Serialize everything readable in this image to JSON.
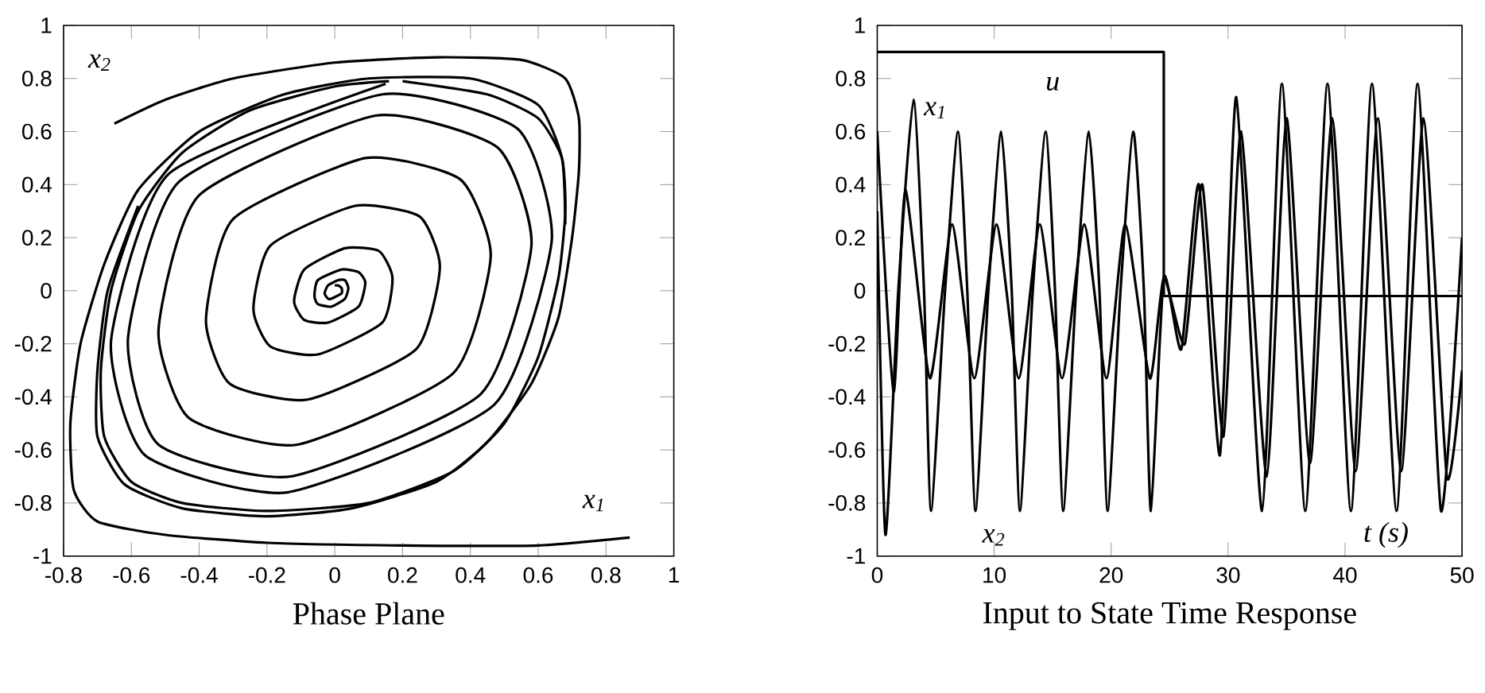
{
  "chart_data": [
    {
      "type": "line",
      "title": "Phase Plane",
      "xlabel": "x$_{1}$",
      "ylabel": "x$_{2}$",
      "xlim": [
        -0.8,
        1
      ],
      "ylim": [
        -1,
        1
      ],
      "xticks": [
        -0.8,
        -0.6,
        -0.4,
        -0.2,
        0,
        0.2,
        0.4,
        0.6,
        0.8,
        1
      ],
      "yticks": [
        -1,
        -0.8,
        -0.6,
        -0.4,
        -0.2,
        0,
        0.2,
        0.4,
        0.6,
        0.8,
        1
      ],
      "series": [
        {
          "color": "#000000",
          "x": [
            0.2,
            0.45,
            0.6,
            0.67,
            0.68,
            0.66,
            0.6,
            0.5,
            0.35,
            0.1,
            -0.2,
            -0.45,
            -0.6,
            -0.68,
            -0.69,
            -0.66,
            -0.58,
            -0.45,
            -0.25,
            0,
            0.16
          ],
          "values": [
            0.79,
            0.74,
            0.65,
            0.5,
            0.3,
            0.05,
            -0.25,
            -0.5,
            -0.68,
            -0.8,
            -0.83,
            -0.8,
            -0.72,
            -0.55,
            -0.3,
            0,
            0.3,
            0.52,
            0.68,
            0.77,
            0.79
          ]
        },
        {
          "color": "#000000",
          "x": [
            0.0,
            0.01,
            0.02,
            0.02,
            -0.01,
            -0.02,
            -0.03,
            -0.02,
            0.01,
            0.03,
            0.04,
            0.03,
            -0.01,
            -0.05,
            -0.06,
            -0.05,
            0.02,
            0.07,
            0.09,
            0.07,
            -0.02,
            -0.09,
            -0.12,
            -0.09,
            0.03,
            0.13,
            0.17,
            0.14,
            -0.05,
            -0.19,
            -0.24,
            -0.19,
            0.06,
            0.25,
            0.31,
            0.24,
            -0.08,
            -0.31,
            -0.38,
            -0.3,
            0.09,
            0.37,
            0.46,
            0.35,
            -0.11,
            -0.43,
            -0.52,
            -0.4,
            0.12,
            0.48,
            0.58,
            0.43,
            -0.13,
            -0.52,
            -0.61,
            -0.46,
            0.14,
            0.54,
            0.64,
            0.47,
            -0.14,
            -0.56,
            -0.66,
            -0.49,
            0.15
          ],
          "values": [
            0.02,
            0.02,
            0.01,
            -0.01,
            -0.03,
            -0.03,
            -0.01,
            0.02,
            0.04,
            0.04,
            0.01,
            -0.03,
            -0.06,
            -0.05,
            -0.02,
            0.04,
            0.08,
            0.07,
            0.03,
            -0.06,
            -0.12,
            -0.11,
            -0.04,
            0.08,
            0.16,
            0.15,
            0.05,
            -0.12,
            -0.24,
            -0.21,
            -0.07,
            0.17,
            0.32,
            0.28,
            0.09,
            -0.22,
            -0.41,
            -0.35,
            -0.11,
            0.27,
            0.5,
            0.42,
            0.13,
            -0.31,
            -0.58,
            -0.48,
            -0.15,
            0.36,
            0.66,
            0.54,
            0.17,
            -0.39,
            -0.7,
            -0.58,
            -0.18,
            0.41,
            0.74,
            0.61,
            0.19,
            -0.43,
            -0.76,
            -0.62,
            -0.19,
            0.44,
            0.78
          ]
        },
        {
          "color": "#000000",
          "x": [
            -0.65,
            -0.5,
            -0.3,
            0,
            0.3,
            0.55,
            0.68,
            0.72,
            0.72,
            0.7,
            0.66,
            0.58,
            0.45,
            0.3,
            0.05,
            -0.2,
            -0.45,
            -0.62,
            -0.7,
            -0.7,
            -0.67,
            -0.58
          ],
          "values": [
            0.63,
            0.72,
            0.8,
            0.86,
            0.88,
            0.87,
            0.8,
            0.65,
            0.45,
            0.2,
            -0.1,
            -0.35,
            -0.57,
            -0.72,
            -0.82,
            -0.85,
            -0.82,
            -0.73,
            -0.55,
            -0.3,
            0,
            0.32
          ]
        },
        {
          "color": "#000000",
          "x": [
            0.87,
            0.6,
            0.2,
            -0.2,
            -0.5,
            -0.7,
            -0.77,
            -0.78,
            -0.75,
            -0.68,
            -0.58,
            -0.4,
            -0.15,
            0.1,
            0.4,
            0.6,
            0.67,
            0.68
          ],
          "values": [
            -0.93,
            -0.96,
            -0.96,
            -0.95,
            -0.92,
            -0.87,
            -0.75,
            -0.5,
            -0.2,
            0.1,
            0.38,
            0.6,
            0.74,
            0.8,
            0.8,
            0.7,
            0.5,
            0.25
          ]
        }
      ]
    },
    {
      "type": "line",
      "title": "Input to State Time Response",
      "xlabel": "t (s)",
      "xlim": [
        0,
        50
      ],
      "ylim": [
        -1,
        1
      ],
      "xticks": [
        0,
        10,
        20,
        30,
        40,
        50
      ],
      "yticks": [
        -1,
        -0.8,
        -0.6,
        -0.4,
        -0.2,
        0,
        0.2,
        0.4,
        0.6,
        0.8,
        1
      ],
      "series": [
        {
          "type": "step",
          "color": "#000000",
          "x": [
            0,
            24.5,
            50
          ],
          "values": [
            0.9,
            -0.02,
            -0.02
          ]
        },
        {
          "color": "#000000",
          "x": [
            0,
            1.4,
            2.4,
            4.5,
            6.4,
            8.3,
            10.2,
            12.1,
            13.9,
            15.8,
            17.7,
            19.6,
            21.2,
            23.3,
            24.5,
            26.3,
            27.8,
            29.6,
            31.1,
            33.3,
            35.0,
            37.0,
            38.9,
            40.9,
            42.8,
            44.8,
            46.7,
            48.7,
            50
          ],
          "values": [
            0.6,
            -0.38,
            0.38,
            -0.33,
            0.25,
            -0.33,
            0.25,
            -0.33,
            0.25,
            -0.33,
            0.25,
            -0.33,
            0.25,
            -0.33,
            0.05,
            -0.2,
            0.4,
            -0.55,
            0.6,
            -0.7,
            0.65,
            -0.65,
            0.65,
            -0.68,
            0.65,
            -0.68,
            0.65,
            -0.7,
            -0.3
          ]
        },
        {
          "color": "#000000",
          "x": [
            0,
            0.7,
            1.8,
            3.1,
            4.0,
            4.6,
            5.8,
            6.9,
            7.7,
            8.4,
            9.5,
            10.6,
            11.5,
            12.2,
            13.3,
            14.4,
            15.2,
            15.9,
            17.0,
            18.1,
            19.0,
            19.7,
            20.8,
            21.9,
            22.8,
            23.4,
            24.5,
            26.0,
            27.5,
            29.3,
            30.7,
            32.9,
            34.6,
            36.6,
            38.5,
            40.5,
            42.3,
            44.4,
            46.2,
            48.2,
            50
          ],
          "values": [
            0.3,
            -0.92,
            0,
            0.72,
            0,
            -0.83,
            0,
            0.6,
            0,
            -0.83,
            0,
            0.6,
            0,
            -0.83,
            0,
            0.6,
            0,
            -0.83,
            0,
            0.6,
            0,
            -0.83,
            0,
            0.6,
            0,
            -0.83,
            0.05,
            -0.22,
            0.4,
            -0.62,
            0.73,
            -0.83,
            0.78,
            -0.83,
            0.78,
            -0.83,
            0.78,
            -0.83,
            0.78,
            -0.83,
            0.2
          ]
        }
      ],
      "annotations": [
        "u",
        "x$_{1}$",
        "x$_{2}$"
      ]
    }
  ]
}
